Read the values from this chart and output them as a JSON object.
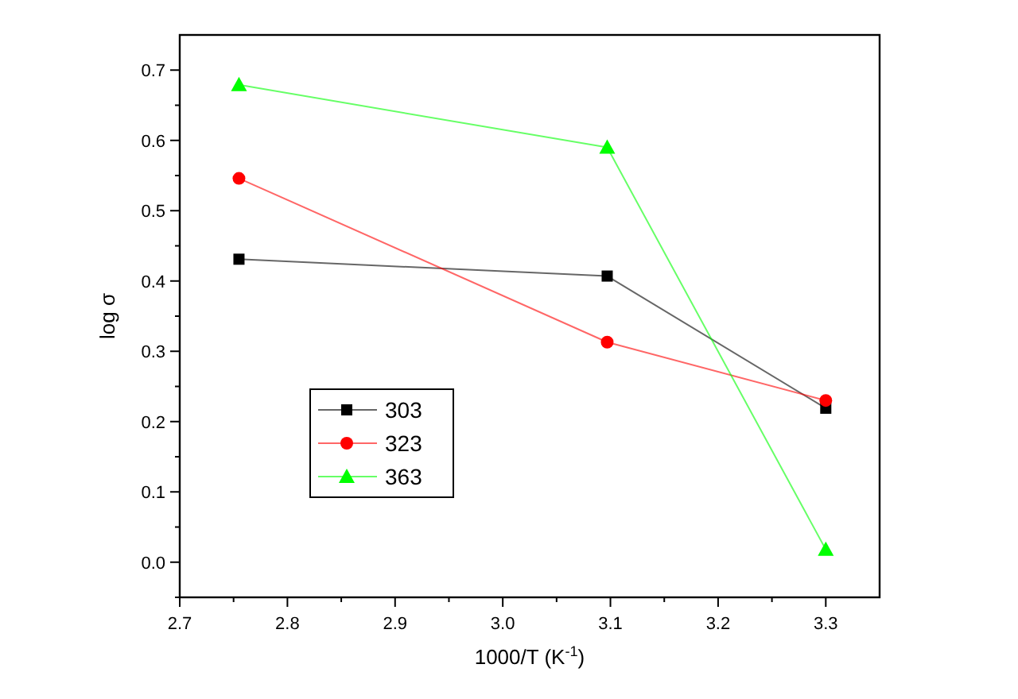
{
  "chart_data": {
    "type": "line",
    "xlabel": "1000/T (K$^{-1}$)",
    "ylabel": "log σ",
    "x": [
      2.755,
      3.097,
      3.3
    ],
    "series": [
      {
        "name": "303",
        "color": "#000000",
        "marker": "square",
        "values": [
          0.431,
          0.407,
          0.219
        ]
      },
      {
        "name": "323",
        "color": "#ff0000",
        "marker": "circle",
        "values": [
          0.546,
          0.313,
          0.23
        ]
      },
      {
        "name": "363",
        "color": "#00ff00",
        "marker": "triangle",
        "values": [
          0.679,
          0.59,
          0.018
        ]
      }
    ],
    "xlim": [
      2.7,
      3.35
    ],
    "ylim": [
      -0.05,
      0.75
    ],
    "xticks": [
      {
        "value": 2.7,
        "label": "2.7"
      },
      {
        "value": 2.75,
        "label": null
      },
      {
        "value": 2.8,
        "label": "2.8"
      },
      {
        "value": 2.85,
        "label": null
      },
      {
        "value": 2.9,
        "label": "2.9"
      },
      {
        "value": 2.95,
        "label": null
      },
      {
        "value": 3.0,
        "label": "3.0"
      },
      {
        "value": 3.05,
        "label": null
      },
      {
        "value": 3.1,
        "label": "3.1"
      },
      {
        "value": 3.15,
        "label": null
      },
      {
        "value": 3.2,
        "label": "3.2"
      },
      {
        "value": 3.25,
        "label": null
      },
      {
        "value": 3.3,
        "label": "3.3"
      }
    ],
    "yticks": [
      {
        "value": -0.05,
        "label": null
      },
      {
        "value": 0,
        "label": "0.0"
      },
      {
        "value": 0.05,
        "label": null
      },
      {
        "value": 0.1,
        "label": "0.1"
      },
      {
        "value": 0.15,
        "label": null
      },
      {
        "value": 0.2,
        "label": "0.2"
      },
      {
        "value": 0.25,
        "label": null
      },
      {
        "value": 0.3,
        "label": "0.3"
      },
      {
        "value": 0.35,
        "label": null
      },
      {
        "value": 0.4,
        "label": "0.4"
      },
      {
        "value": 0.45,
        "label": null
      },
      {
        "value": 0.5,
        "label": "0.5"
      },
      {
        "value": 0.55,
        "label": null
      },
      {
        "value": 0.6,
        "label": "0.6"
      },
      {
        "value": 0.65,
        "label": null
      },
      {
        "value": 0.7,
        "label": "0.7"
      }
    ],
    "grid": false,
    "legend": "bottom left",
    "line_style": "solid"
  }
}
